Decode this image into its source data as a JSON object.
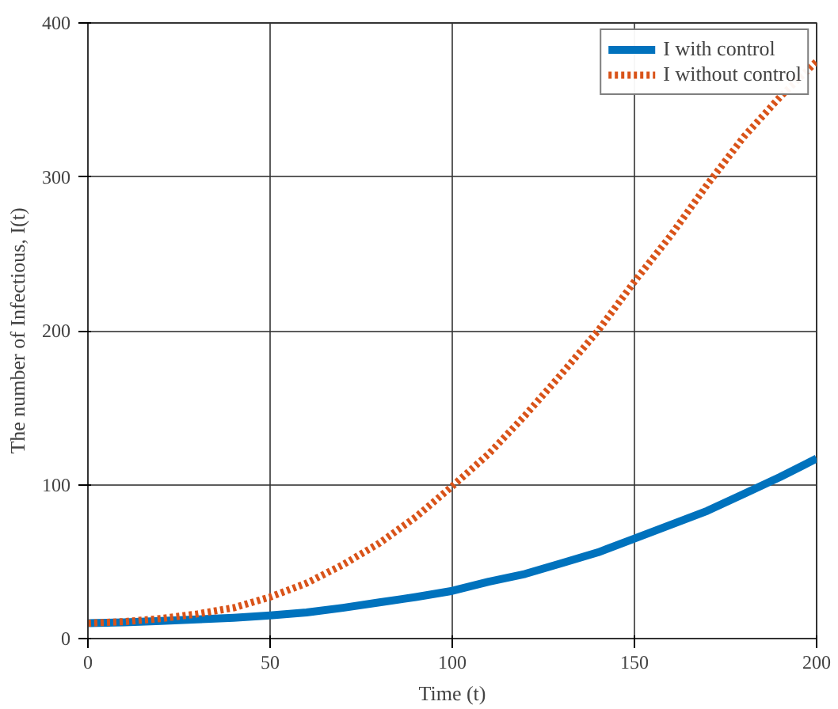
{
  "chart_data": {
    "type": "line",
    "xlabel": "Time (t)",
    "ylabel": "The number of Infectious, I(t)",
    "x": [
      0,
      10,
      20,
      30,
      40,
      50,
      60,
      70,
      80,
      90,
      100,
      110,
      120,
      130,
      140,
      150,
      160,
      170,
      180,
      190,
      200
    ],
    "series": [
      {
        "name": "I with control",
        "color": "#0072bd",
        "line_style": "solid",
        "values": [
          10,
          10.5,
          11.5,
          12.5,
          13.5,
          15,
          17,
          20,
          23.5,
          27,
          31,
          37,
          42,
          49,
          56,
          65,
          74,
          83,
          94,
          105,
          117
        ]
      },
      {
        "name": "I without control",
        "color": "#d95319",
        "line_style": "dotted",
        "values": [
          10,
          11,
          13,
          16,
          20,
          27,
          36,
          48,
          62,
          79,
          99,
          120,
          145,
          172,
          200,
          232,
          262,
          295,
          326,
          352,
          375
        ]
      }
    ],
    "xlim": [
      0,
      200
    ],
    "xticks": [
      0,
      50,
      100,
      150,
      200
    ],
    "ylim": [
      0,
      400
    ],
    "yticks": [
      0,
      100,
      200,
      300,
      400
    ],
    "grid": true,
    "legend": "top right",
    "marker": "none"
  }
}
